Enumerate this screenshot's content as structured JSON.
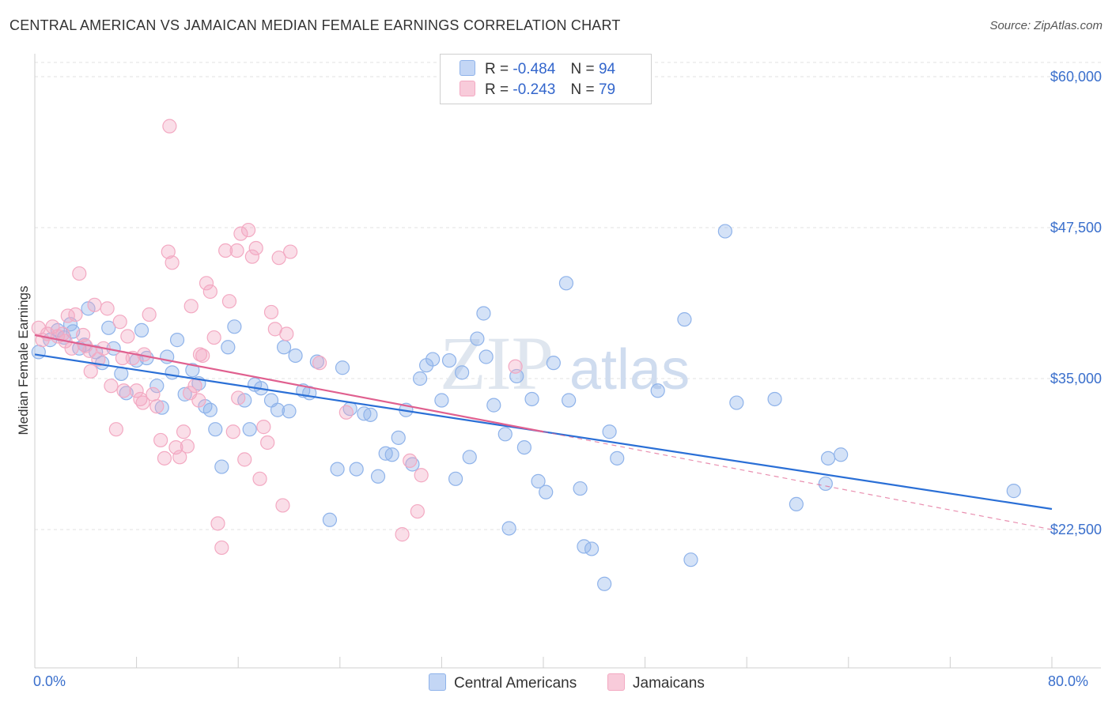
{
  "chart_data": {
    "type": "scatter",
    "title": "CENTRAL AMERICAN VS JAMAICAN MEDIAN FEMALE EARNINGS CORRELATION CHART",
    "source": "Source: ZipAtlas.com",
    "xlabel": "",
    "ylabel": "Median Female Earnings",
    "xlim": [
      0,
      80
    ],
    "ylim": [
      12000,
      61500
    ],
    "x_tick_labels": [
      "0.0%",
      "80.0%"
    ],
    "y_ticks": [
      22500,
      35000,
      47500,
      60000
    ],
    "y_tick_labels": [
      "$22,500",
      "$35,000",
      "$47,500",
      "$60,000"
    ],
    "grid": true,
    "watermark": "ZIPatlas",
    "legend": {
      "position": "top-center",
      "entries": [
        {
          "r_label": "R =",
          "r_value": "-0.484",
          "n_label": "N =",
          "n_value": "94"
        },
        {
          "r_label": "R =",
          "r_value": "-0.243",
          "n_label": "N =",
          "n_value": "79"
        }
      ]
    },
    "series": [
      {
        "name": "Central Americans",
        "color": "#8fb3ea",
        "line_color": "#2a6fd6",
        "trend": {
          "x0": 0,
          "y0": 37000,
          "x1": 80,
          "y1": 24200
        },
        "points": [
          [
            0.3,
            37200
          ],
          [
            1.2,
            38200
          ],
          [
            1.8,
            39000
          ],
          [
            2.3,
            38400
          ],
          [
            2.8,
            39500
          ],
          [
            3.0,
            38900
          ],
          [
            3.5,
            37500
          ],
          [
            3.9,
            37800
          ],
          [
            4.2,
            40800
          ],
          [
            4.8,
            37200
          ],
          [
            5.3,
            36300
          ],
          [
            5.8,
            39200
          ],
          [
            6.2,
            37500
          ],
          [
            6.8,
            35400
          ],
          [
            7.2,
            33800
          ],
          [
            8.0,
            36500
          ],
          [
            8.4,
            39000
          ],
          [
            8.8,
            36700
          ],
          [
            9.6,
            34400
          ],
          [
            10.0,
            32600
          ],
          [
            10.4,
            36800
          ],
          [
            10.8,
            35500
          ],
          [
            11.2,
            38200
          ],
          [
            11.8,
            33700
          ],
          [
            12.4,
            35700
          ],
          [
            12.9,
            34600
          ],
          [
            13.4,
            32700
          ],
          [
            13.8,
            32400
          ],
          [
            14.2,
            30800
          ],
          [
            14.7,
            27700
          ],
          [
            15.2,
            37600
          ],
          [
            15.7,
            39300
          ],
          [
            16.5,
            33200
          ],
          [
            16.9,
            30800
          ],
          [
            17.3,
            34500
          ],
          [
            17.8,
            34200
          ],
          [
            18.6,
            33200
          ],
          [
            19.1,
            32400
          ],
          [
            19.6,
            37600
          ],
          [
            20.0,
            32300
          ],
          [
            20.5,
            36900
          ],
          [
            21.1,
            34000
          ],
          [
            21.6,
            33800
          ],
          [
            22.2,
            36400
          ],
          [
            23.2,
            23300
          ],
          [
            23.8,
            27500
          ],
          [
            24.2,
            35900
          ],
          [
            24.8,
            32500
          ],
          [
            25.3,
            27500
          ],
          [
            25.9,
            32100
          ],
          [
            26.4,
            32000
          ],
          [
            27.0,
            26900
          ],
          [
            27.6,
            28800
          ],
          [
            28.1,
            28700
          ],
          [
            28.6,
            30100
          ],
          [
            29.2,
            32400
          ],
          [
            29.7,
            27900
          ],
          [
            30.3,
            35000
          ],
          [
            30.8,
            36100
          ],
          [
            31.3,
            36600
          ],
          [
            32.0,
            33200
          ],
          [
            32.6,
            36500
          ],
          [
            33.1,
            26700
          ],
          [
            33.6,
            35500
          ],
          [
            34.2,
            28500
          ],
          [
            34.8,
            38300
          ],
          [
            35.3,
            40400
          ],
          [
            35.5,
            36800
          ],
          [
            36.1,
            32800
          ],
          [
            37.0,
            30400
          ],
          [
            37.3,
            22600
          ],
          [
            37.9,
            35200
          ],
          [
            38.5,
            29300
          ],
          [
            39.1,
            33300
          ],
          [
            39.6,
            26500
          ],
          [
            40.2,
            25600
          ],
          [
            40.8,
            36300
          ],
          [
            41.8,
            42900
          ],
          [
            42.0,
            33200
          ],
          [
            42.9,
            25900
          ],
          [
            43.2,
            21100
          ],
          [
            43.8,
            20900
          ],
          [
            44.8,
            18000
          ],
          [
            45.2,
            30600
          ],
          [
            45.8,
            28400
          ],
          [
            49.0,
            34000
          ],
          [
            51.1,
            39900
          ],
          [
            51.6,
            20000
          ],
          [
            54.3,
            47200
          ],
          [
            55.2,
            33000
          ],
          [
            58.2,
            33300
          ],
          [
            59.9,
            24600
          ],
          [
            62.2,
            26300
          ],
          [
            62.4,
            28400
          ],
          [
            63.4,
            28700
          ],
          [
            77.0,
            25700
          ]
        ]
      },
      {
        "name": "Jamaicans",
        "color": "#f3a9c2",
        "line_color": "#e0608f",
        "trend": {
          "x0": 0,
          "y0": 38600,
          "x1": 40,
          "y1": 30600
        },
        "trend_dashed": {
          "x0": 40,
          "y0": 30600,
          "x1": 80,
          "y1": 22500
        },
        "points": [
          [
            0.3,
            39200
          ],
          [
            0.6,
            38200
          ],
          [
            1.0,
            38700
          ],
          [
            1.4,
            39300
          ],
          [
            1.8,
            38500
          ],
          [
            2.2,
            38700
          ],
          [
            2.6,
            40200
          ],
          [
            2.9,
            37500
          ],
          [
            3.2,
            40300
          ],
          [
            3.5,
            43700
          ],
          [
            3.8,
            38600
          ],
          [
            4.0,
            37700
          ],
          [
            4.4,
            35600
          ],
          [
            4.7,
            41100
          ],
          [
            5.0,
            36600
          ],
          [
            5.4,
            37500
          ],
          [
            5.7,
            40800
          ],
          [
            6.0,
            34400
          ],
          [
            6.4,
            30800
          ],
          [
            6.7,
            39700
          ],
          [
            7.0,
            34000
          ],
          [
            7.3,
            38500
          ],
          [
            7.7,
            36700
          ],
          [
            8.0,
            34000
          ],
          [
            8.3,
            33300
          ],
          [
            8.6,
            37000
          ],
          [
            9.0,
            40300
          ],
          [
            9.3,
            33700
          ],
          [
            9.6,
            32700
          ],
          [
            9.9,
            29900
          ],
          [
            10.2,
            28400
          ],
          [
            10.5,
            45500
          ],
          [
            10.8,
            44600
          ],
          [
            11.1,
            29300
          ],
          [
            11.4,
            28500
          ],
          [
            11.7,
            30600
          ],
          [
            12.0,
            29400
          ],
          [
            12.3,
            41000
          ],
          [
            12.6,
            34400
          ],
          [
            12.9,
            33200
          ],
          [
            13.2,
            36900
          ],
          [
            13.5,
            42900
          ],
          [
            13.8,
            42200
          ],
          [
            14.1,
            38400
          ],
          [
            14.4,
            23000
          ],
          [
            14.7,
            21000
          ],
          [
            15.0,
            45600
          ],
          [
            15.3,
            41400
          ],
          [
            15.6,
            30600
          ],
          [
            15.9,
            45600
          ],
          [
            16.2,
            47000
          ],
          [
            16.5,
            28300
          ],
          [
            16.8,
            47300
          ],
          [
            17.1,
            45100
          ],
          [
            17.4,
            45800
          ],
          [
            17.7,
            26700
          ],
          [
            18.0,
            31000
          ],
          [
            18.3,
            29700
          ],
          [
            18.6,
            40500
          ],
          [
            18.9,
            39100
          ],
          [
            19.2,
            45000
          ],
          [
            19.5,
            24500
          ],
          [
            19.8,
            38700
          ],
          [
            20.1,
            45500
          ],
          [
            22.4,
            36300
          ],
          [
            24.5,
            32200
          ],
          [
            28.9,
            22100
          ],
          [
            29.5,
            28200
          ],
          [
            30.1,
            24000
          ],
          [
            30.4,
            27000
          ],
          [
            37.8,
            36000
          ],
          [
            10.6,
            55900
          ],
          [
            8.5,
            33000
          ],
          [
            12.2,
            33800
          ],
          [
            6.9,
            36700
          ],
          [
            4.3,
            37300
          ],
          [
            13.0,
            37000
          ],
          [
            16.0,
            33400
          ],
          [
            2.4,
            38100
          ]
        ]
      }
    ]
  }
}
